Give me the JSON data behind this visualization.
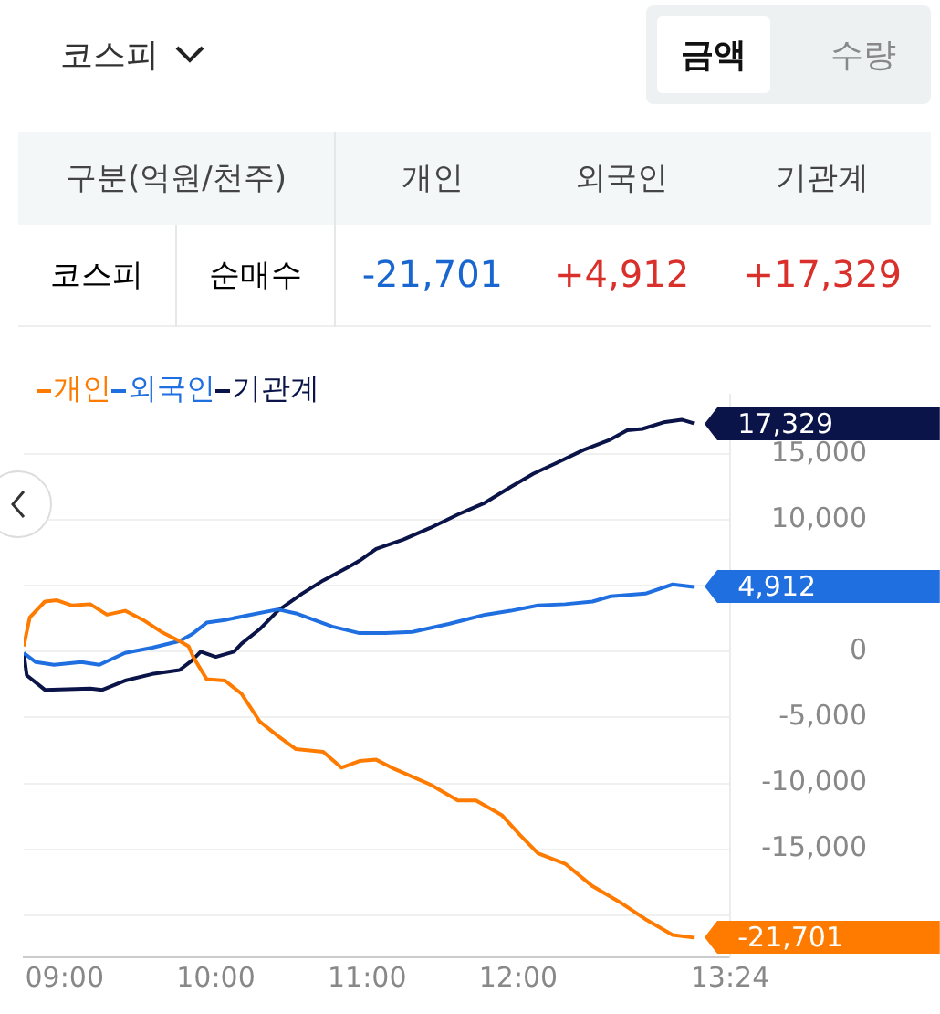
{
  "chart_data": {
    "type": "line",
    "title": "코스피",
    "annotations": [
      "금액",
      "수량",
      "구분(억원/천주)",
      "코스피",
      "순매수",
      "-21,701",
      "+4,912",
      "+17,329"
    ],
    "legend": "top left",
    "grid": "y",
    "xlim": [
      8.73,
      13.4
    ],
    "xticks": [
      {
        "value": 9,
        "label": "09:00"
      },
      {
        "value": 10,
        "label": "10:00"
      },
      {
        "value": 11,
        "label": "11:00"
      },
      {
        "value": 12,
        "label": "12:00"
      },
      {
        "value": 13.4,
        "label": "13:24"
      }
    ],
    "ylim": [
      -23200,
      19500
    ],
    "yticks": [
      {
        "value": -20000,
        "label": null
      },
      {
        "value": -15000,
        "label": "-15,000"
      },
      {
        "value": -10000,
        "label": "-10,000"
      },
      {
        "value": -5000,
        "label": "-5,000"
      },
      0,
      {
        "value": 5000,
        "label": null
      },
      {
        "value": 10000,
        "label": "10,000"
      },
      {
        "value": 15000,
        "label": "15,000"
      }
    ],
    "series": [
      {
        "name": "개인",
        "color": "#ff7b00",
        "x": [
          8.73,
          8.77,
          8.87,
          8.95,
          9.05,
          9.17,
          9.28,
          9.4,
          9.52,
          9.64,
          9.76,
          9.82,
          9.85,
          9.94,
          10.06,
          10.17,
          10.29,
          10.41,
          10.53,
          10.71,
          10.83,
          10.95,
          11.06,
          11.18,
          11.42,
          11.6,
          11.72,
          11.89,
          12.01,
          12.13,
          12.31,
          12.49,
          12.67,
          12.84,
          13.02,
          13.16
        ],
        "values": [
          400,
          2600,
          3800,
          3900,
          3500,
          3600,
          2800,
          3100,
          2400,
          1500,
          800,
          400,
          -400,
          -2100,
          -2200,
          -3200,
          -5300,
          -6400,
          -7400,
          -7600,
          -8800,
          -8300,
          -8200,
          -8900,
          -10100,
          -11300,
          -11300,
          -12400,
          -13900,
          -15300,
          -16100,
          -17800,
          -19000,
          -20300,
          -21500,
          -21701
        ],
        "value_labels": [
          null,
          null,
          null,
          null,
          null,
          null,
          null,
          null,
          null,
          null,
          null,
          null,
          null,
          null,
          null,
          null,
          null,
          null,
          null,
          null,
          null,
          null,
          null,
          null,
          null,
          null,
          null,
          null,
          null,
          null,
          null,
          null,
          null,
          null,
          null,
          "-21,701"
        ]
      },
      {
        "name": "외국인",
        "color": "#1f6fe0",
        "x": [
          8.73,
          8.81,
          8.93,
          9.11,
          9.23,
          9.4,
          9.58,
          9.76,
          9.84,
          9.94,
          10.06,
          10.23,
          10.41,
          10.53,
          10.65,
          10.77,
          10.95,
          11.12,
          11.3,
          11.54,
          11.78,
          11.95,
          12.13,
          12.31,
          12.49,
          12.61,
          12.84,
          13.02,
          13.16
        ],
        "values": [
          -100,
          -800,
          -1000,
          -800,
          -1000,
          -100,
          300,
          800,
          1300,
          2200,
          2400,
          2800,
          3200,
          2900,
          2400,
          1900,
          1400,
          1400,
          1500,
          2100,
          2800,
          3100,
          3500,
          3600,
          3800,
          4200,
          4400,
          5100,
          4912
        ],
        "value_labels": [
          null,
          null,
          null,
          null,
          null,
          null,
          null,
          null,
          null,
          null,
          null,
          null,
          null,
          null,
          null,
          null,
          null,
          null,
          null,
          null,
          null,
          null,
          null,
          null,
          null,
          null,
          null,
          null,
          "4,912"
        ]
      },
      {
        "name": "기관계",
        "color": "#0a1448",
        "x": [
          8.73,
          8.75,
          8.87,
          9.17,
          9.25,
          9.4,
          9.58,
          9.76,
          9.84,
          9.9,
          10.0,
          10.12,
          10.17,
          10.29,
          10.41,
          10.57,
          10.71,
          10.89,
          10.95,
          11.06,
          11.24,
          11.42,
          11.6,
          11.78,
          11.95,
          12.1,
          12.25,
          12.43,
          12.61,
          12.72,
          12.82,
          12.96,
          13.08,
          13.16
        ],
        "values": [
          -100,
          -1800,
          -2900,
          -2800,
          -2900,
          -2200,
          -1700,
          -1400,
          -700,
          0,
          -400,
          0,
          600,
          1700,
          3100,
          4400,
          5400,
          6500,
          6900,
          7800,
          8500,
          9400,
          10400,
          11300,
          12500,
          13500,
          14300,
          15300,
          16100,
          16800,
          16900,
          17400,
          17600,
          17329
        ],
        "value_labels": [
          null,
          null,
          null,
          null,
          null,
          null,
          null,
          null,
          null,
          null,
          null,
          null,
          null,
          null,
          null,
          null,
          null,
          null,
          null,
          null,
          null,
          null,
          null,
          null,
          null,
          null,
          null,
          null,
          null,
          null,
          null,
          null,
          null,
          "17,329"
        ]
      }
    ]
  }
}
